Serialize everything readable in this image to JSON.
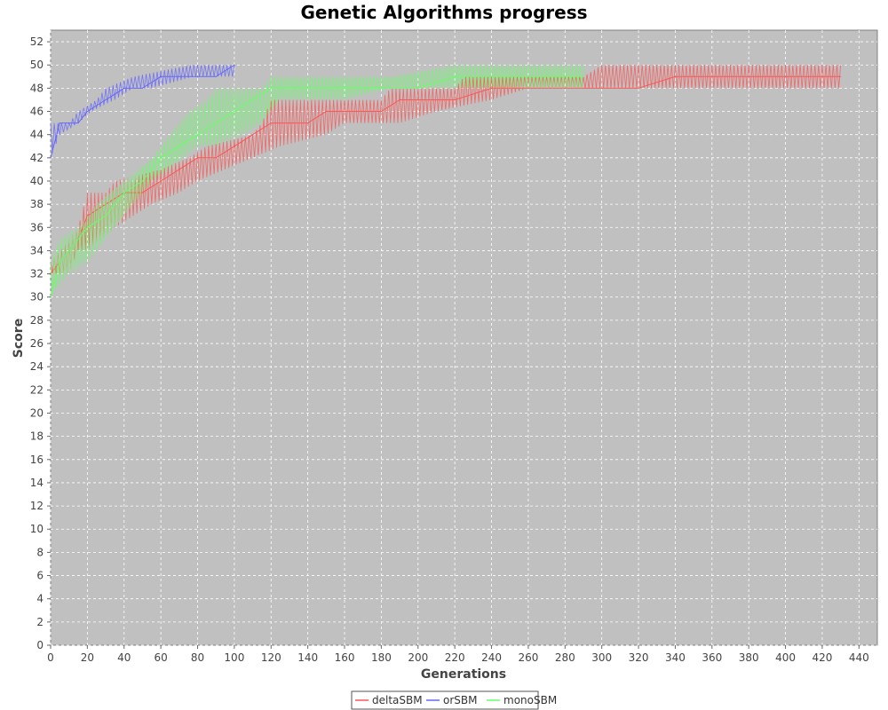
{
  "chart_data": {
    "type": "line",
    "title": "Genetic Algorithms progress",
    "xlabel": "Generations",
    "ylabel": "Score",
    "xlim": [
      0,
      450
    ],
    "ylim": [
      0,
      53
    ],
    "x_ticks": [
      0,
      20,
      40,
      60,
      80,
      100,
      120,
      140,
      160,
      180,
      200,
      220,
      240,
      260,
      280,
      300,
      320,
      340,
      360,
      380,
      400,
      420,
      440
    ],
    "y_ticks": [
      0,
      2,
      4,
      6,
      8,
      10,
      12,
      14,
      16,
      18,
      20,
      22,
      24,
      26,
      28,
      30,
      32,
      34,
      36,
      38,
      40,
      42,
      44,
      46,
      48,
      50,
      52
    ],
    "grid": true,
    "legend_position": "bottom-center",
    "series": [
      {
        "name": "deltaSBM",
        "color": "#ff5555",
        "points": [
          [
            0,
            32
          ],
          [
            5,
            33
          ],
          [
            10,
            34
          ],
          [
            15,
            35
          ],
          [
            20,
            37
          ],
          [
            30,
            38
          ],
          [
            40,
            39
          ],
          [
            50,
            39
          ],
          [
            60,
            40
          ],
          [
            70,
            41
          ],
          [
            80,
            42
          ],
          [
            90,
            42
          ],
          [
            100,
            43
          ],
          [
            110,
            44
          ],
          [
            120,
            45
          ],
          [
            130,
            45
          ],
          [
            140,
            45
          ],
          [
            150,
            46
          ],
          [
            160,
            46
          ],
          [
            180,
            46
          ],
          [
            190,
            47
          ],
          [
            200,
            47
          ],
          [
            220,
            47
          ],
          [
            240,
            48
          ],
          [
            260,
            48
          ],
          [
            280,
            48
          ],
          [
            300,
            48
          ],
          [
            320,
            48
          ],
          [
            340,
            49
          ],
          [
            350,
            49
          ],
          [
            400,
            49
          ],
          [
            430,
            49
          ]
        ],
        "low": [
          [
            0,
            32
          ],
          [
            10,
            32
          ],
          [
            15,
            34
          ],
          [
            20,
            34
          ],
          [
            35,
            36
          ],
          [
            45,
            37
          ],
          [
            55,
            38
          ],
          [
            70,
            39
          ],
          [
            80,
            40
          ],
          [
            95,
            41
          ],
          [
            110,
            42
          ],
          [
            125,
            43
          ],
          [
            150,
            44
          ],
          [
            160,
            45
          ],
          [
            190,
            45
          ],
          [
            210,
            46
          ],
          [
            240,
            47
          ],
          [
            260,
            48
          ],
          [
            350,
            48
          ]
        ],
        "high": [
          [
            0,
            33
          ],
          [
            5,
            34
          ],
          [
            15,
            36
          ],
          [
            20,
            39
          ],
          [
            30,
            39
          ],
          [
            35,
            40
          ],
          [
            60,
            41
          ],
          [
            75,
            42
          ],
          [
            85,
            43
          ],
          [
            110,
            44
          ],
          [
            115,
            45
          ],
          [
            120,
            47
          ],
          [
            180,
            47
          ],
          [
            185,
            48
          ],
          [
            220,
            48
          ],
          [
            225,
            49
          ],
          [
            290,
            49
          ],
          [
            300,
            50
          ],
          [
            340,
            50
          ],
          [
            400,
            50
          ],
          [
            430,
            50
          ]
        ]
      },
      {
        "name": "orSBM",
        "color": "#6666ff",
        "points": [
          [
            0,
            42
          ],
          [
            5,
            45
          ],
          [
            10,
            45
          ],
          [
            15,
            45
          ],
          [
            20,
            46
          ],
          [
            30,
            47
          ],
          [
            40,
            48
          ],
          [
            50,
            48
          ],
          [
            60,
            49
          ],
          [
            70,
            49
          ],
          [
            80,
            49
          ],
          [
            90,
            49
          ],
          [
            100,
            50
          ]
        ],
        "low": [
          [
            0,
            42
          ],
          [
            5,
            44
          ],
          [
            15,
            45
          ],
          [
            22,
            46
          ],
          [
            35,
            47
          ],
          [
            45,
            48
          ],
          [
            55,
            48
          ],
          [
            78,
            49
          ],
          [
            100,
            49
          ]
        ],
        "high": [
          [
            0,
            45
          ],
          [
            10,
            45
          ],
          [
            15,
            46
          ],
          [
            25,
            47
          ],
          [
            30,
            48
          ],
          [
            45,
            49
          ],
          [
            76,
            50
          ],
          [
            85,
            50
          ],
          [
            92,
            50
          ],
          [
            100,
            50
          ]
        ]
      },
      {
        "name": "monoSBM",
        "color": "#66ff66",
        "points": [
          [
            0,
            30
          ],
          [
            5,
            33
          ],
          [
            10,
            34
          ],
          [
            15,
            35
          ],
          [
            20,
            36
          ],
          [
            30,
            37
          ],
          [
            40,
            39
          ],
          [
            50,
            40
          ],
          [
            60,
            42
          ],
          [
            70,
            43
          ],
          [
            80,
            44
          ],
          [
            90,
            45
          ],
          [
            100,
            46
          ],
          [
            110,
            47
          ],
          [
            120,
            48
          ],
          [
            140,
            48
          ],
          [
            160,
            48
          ],
          [
            180,
            48
          ],
          [
            200,
            48
          ],
          [
            220,
            49
          ],
          [
            230,
            49
          ],
          [
            290,
            49
          ]
        ],
        "low": [
          [
            0,
            30
          ],
          [
            10,
            32
          ],
          [
            20,
            33
          ],
          [
            30,
            35
          ],
          [
            45,
            38
          ],
          [
            55,
            40
          ],
          [
            65,
            41
          ],
          [
            80,
            43
          ],
          [
            90,
            43
          ],
          [
            105,
            44
          ],
          [
            115,
            45
          ],
          [
            125,
            47
          ],
          [
            160,
            47
          ],
          [
            185,
            48
          ],
          [
            230,
            48
          ]
        ],
        "high": [
          [
            0,
            33
          ],
          [
            5,
            35
          ],
          [
            15,
            36
          ],
          [
            25,
            38
          ],
          [
            40,
            40
          ],
          [
            55,
            42
          ],
          [
            65,
            44
          ],
          [
            75,
            46
          ],
          [
            85,
            47
          ],
          [
            90,
            48
          ],
          [
            115,
            48
          ],
          [
            120,
            49
          ],
          [
            185,
            49
          ],
          [
            220,
            50
          ],
          [
            232,
            50
          ],
          [
            290,
            50
          ]
        ]
      }
    ]
  }
}
